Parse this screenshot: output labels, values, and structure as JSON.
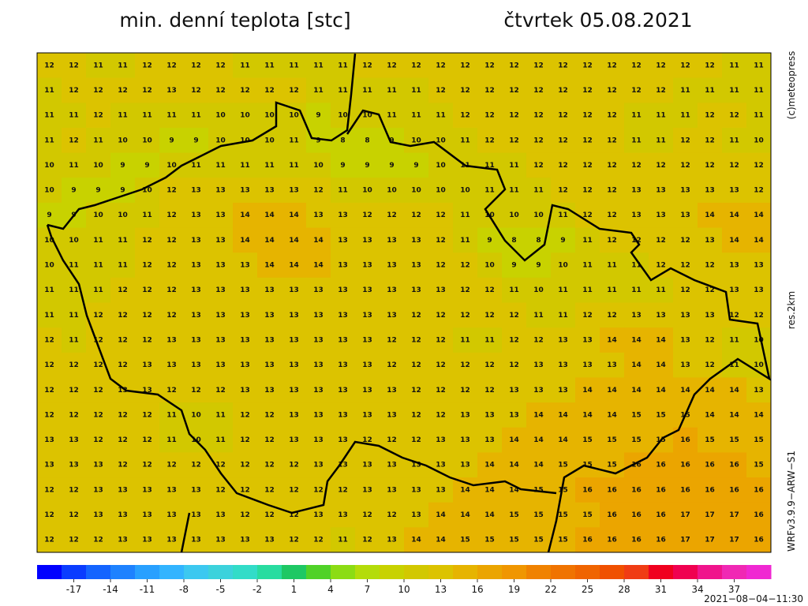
{
  "title": "min. denní teplota [stc]",
  "date": "čtvrtek 05.08.2021",
  "credit": "(c)meteopress",
  "resolution": "res.2km",
  "model": "WRFv3.9.9−ARW−S1",
  "timestamp": "2021−08−04−11:30",
  "field": {
    "rows": [
      [
        12,
        12,
        11,
        11,
        12,
        12,
        12,
        12,
        11,
        11,
        11,
        11,
        11,
        12,
        12,
        12,
        12,
        12,
        12,
        12,
        12,
        12,
        12,
        12,
        12,
        12,
        12,
        12,
        11,
        11
      ],
      [
        11,
        12,
        12,
        12,
        12,
        13,
        12,
        12,
        12,
        12,
        12,
        11,
        11,
        11,
        11,
        11,
        12,
        12,
        12,
        12,
        12,
        12,
        12,
        12,
        12,
        12,
        11,
        11,
        11,
        11
      ],
      [
        11,
        11,
        12,
        11,
        11,
        11,
        11,
        10,
        10,
        10,
        10,
        9,
        10,
        10,
        11,
        11,
        11,
        12,
        12,
        12,
        12,
        12,
        12,
        12,
        11,
        11,
        11,
        12,
        12,
        11
      ],
      [
        11,
        12,
        11,
        10,
        10,
        9,
        9,
        10,
        10,
        10,
        11,
        9,
        8,
        8,
        9,
        10,
        10,
        11,
        12,
        12,
        12,
        12,
        12,
        12,
        11,
        11,
        12,
        12,
        11,
        10
      ],
      [
        10,
        11,
        10,
        9,
        9,
        10,
        11,
        11,
        11,
        11,
        11,
        10,
        9,
        9,
        9,
        9,
        10,
        11,
        11,
        11,
        12,
        12,
        12,
        12,
        12,
        12,
        12,
        12,
        12,
        12
      ],
      [
        10,
        9,
        9,
        9,
        10,
        12,
        13,
        13,
        13,
        13,
        13,
        12,
        11,
        10,
        10,
        10,
        10,
        10,
        11,
        11,
        11,
        12,
        12,
        12,
        13,
        13,
        13,
        13,
        13,
        12
      ],
      [
        9,
        9,
        10,
        10,
        11,
        12,
        13,
        13,
        14,
        14,
        14,
        13,
        13,
        12,
        12,
        12,
        12,
        11,
        10,
        10,
        10,
        11,
        12,
        12,
        13,
        13,
        13,
        14,
        14,
        14
      ],
      [
        10,
        10,
        11,
        11,
        12,
        12,
        13,
        13,
        14,
        14,
        14,
        14,
        13,
        13,
        13,
        13,
        12,
        11,
        9,
        8,
        8,
        9,
        11,
        12,
        12,
        12,
        12,
        13,
        14,
        14
      ],
      [
        10,
        11,
        11,
        11,
        12,
        12,
        13,
        13,
        13,
        14,
        14,
        14,
        13,
        13,
        13,
        13,
        12,
        12,
        10,
        9,
        9,
        10,
        11,
        11,
        11,
        12,
        12,
        12,
        13,
        13
      ],
      [
        11,
        11,
        11,
        12,
        12,
        12,
        13,
        13,
        13,
        13,
        13,
        13,
        13,
        13,
        13,
        13,
        13,
        12,
        12,
        11,
        10,
        11,
        11,
        11,
        11,
        11,
        12,
        12,
        13,
        13
      ],
      [
        11,
        11,
        12,
        12,
        12,
        12,
        13,
        13,
        13,
        13,
        13,
        13,
        13,
        13,
        13,
        12,
        12,
        12,
        12,
        12,
        11,
        11,
        12,
        12,
        13,
        13,
        13,
        13,
        12,
        12
      ],
      [
        12,
        11,
        12,
        12,
        12,
        13,
        13,
        13,
        13,
        13,
        13,
        13,
        13,
        13,
        12,
        12,
        12,
        11,
        11,
        12,
        12,
        13,
        13,
        14,
        14,
        14,
        13,
        12,
        11,
        10
      ],
      [
        12,
        12,
        12,
        12,
        13,
        13,
        13,
        13,
        13,
        13,
        13,
        13,
        13,
        13,
        12,
        12,
        12,
        12,
        12,
        12,
        13,
        13,
        13,
        13,
        14,
        14,
        13,
        12,
        11,
        10
      ],
      [
        12,
        12,
        12,
        13,
        13,
        12,
        12,
        12,
        13,
        13,
        13,
        13,
        13,
        13,
        13,
        12,
        12,
        12,
        12,
        13,
        13,
        13,
        14,
        14,
        14,
        14,
        14,
        14,
        14,
        13
      ],
      [
        12,
        12,
        12,
        12,
        12,
        11,
        10,
        11,
        12,
        12,
        13,
        13,
        13,
        13,
        13,
        12,
        12,
        13,
        13,
        13,
        14,
        14,
        14,
        14,
        15,
        15,
        15,
        14,
        14,
        14
      ],
      [
        13,
        13,
        12,
        12,
        12,
        11,
        10,
        11,
        12,
        12,
        13,
        13,
        13,
        12,
        12,
        12,
        13,
        13,
        13,
        14,
        14,
        14,
        15,
        15,
        15,
        15,
        16,
        15,
        15,
        15
      ],
      [
        13,
        13,
        13,
        12,
        12,
        12,
        12,
        12,
        12,
        12,
        12,
        13,
        13,
        13,
        13,
        13,
        13,
        13,
        14,
        14,
        14,
        15,
        15,
        15,
        16,
        16,
        16,
        16,
        16,
        15
      ],
      [
        12,
        12,
        13,
        13,
        13,
        13,
        13,
        12,
        12,
        12,
        12,
        12,
        12,
        13,
        13,
        13,
        13,
        14,
        14,
        14,
        15,
        15,
        16,
        16,
        16,
        16,
        16,
        16,
        16,
        16
      ],
      [
        12,
        12,
        13,
        13,
        13,
        13,
        13,
        13,
        12,
        12,
        12,
        13,
        13,
        12,
        12,
        13,
        14,
        14,
        14,
        15,
        15,
        15,
        15,
        16,
        16,
        16,
        17,
        17,
        17,
        16
      ],
      [
        12,
        12,
        12,
        13,
        13,
        13,
        13,
        13,
        13,
        13,
        12,
        12,
        11,
        12,
        13,
        14,
        14,
        15,
        15,
        15,
        15,
        15,
        16,
        16,
        16,
        16,
        17,
        17,
        17,
        16
      ]
    ]
  },
  "colorbar": {
    "lim": [
      -20,
      40
    ],
    "ticks": [
      -17,
      -14,
      -11,
      -8,
      -5,
      -2,
      1,
      4,
      7,
      10,
      13,
      16,
      19,
      22,
      25,
      28,
      31,
      34,
      37
    ],
    "colors": [
      "#0000ff",
      "#0a3cff",
      "#1464ff",
      "#1e82ff",
      "#28a0ff",
      "#32b4ff",
      "#3cc8f0",
      "#3cd2dc",
      "#32dcc8",
      "#28dca0",
      "#1ec864",
      "#50d228",
      "#8cdc14",
      "#b4dc0a",
      "#c8d200",
      "#d2c800",
      "#dcc300",
      "#e6b400",
      "#eba500",
      "#f09600",
      "#f08200",
      "#f07300",
      "#f06400",
      "#f05000",
      "#f03c14",
      "#f0001e",
      "#f00050",
      "#f0148c",
      "#f028b4",
      "#f028d2"
    ]
  }
}
